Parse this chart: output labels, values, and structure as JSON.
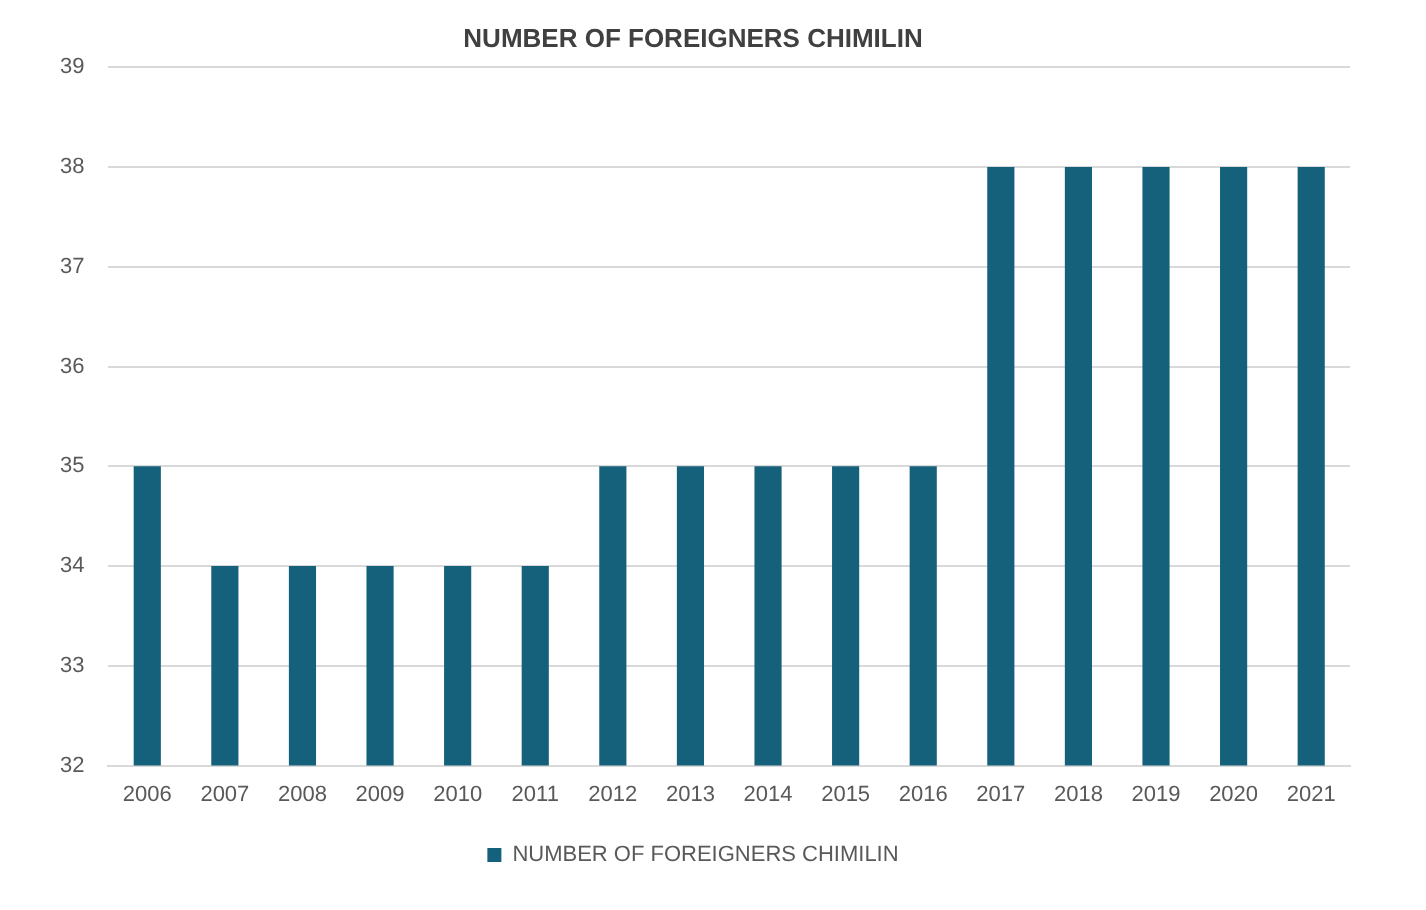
{
  "chart_data": {
    "type": "bar",
    "title": "NUMBER OF FOREIGNERS CHIMILIN",
    "categories": [
      "2006",
      "2007",
      "2008",
      "2009",
      "2010",
      "2011",
      "2012",
      "2013",
      "2014",
      "2015",
      "2016",
      "2017",
      "2018",
      "2019",
      "2020",
      "2021"
    ],
    "series": [
      {
        "name": "NUMBER OF FOREIGNERS CHIMILIN",
        "color": "#15607a",
        "values": [
          35,
          34,
          34,
          34,
          34,
          34,
          35,
          35,
          35,
          35,
          35,
          38,
          38,
          38,
          38,
          38
        ]
      }
    ],
    "ylim": [
      32,
      39
    ],
    "yticks": [
      32,
      33,
      34,
      35,
      36,
      37,
      38,
      39
    ],
    "grid": "y",
    "legend": "bottom"
  }
}
